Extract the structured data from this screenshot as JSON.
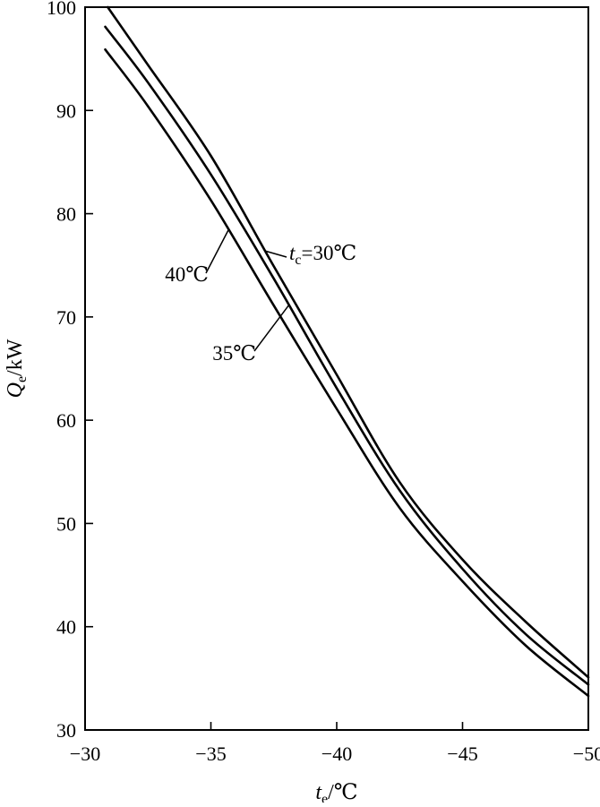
{
  "chart_data": {
    "type": "line",
    "title": "",
    "xlabel": {
      "var": "t",
      "sub": "e",
      "unit": "/℃"
    },
    "ylabel": {
      "var": "Q",
      "sub": "e",
      "unit": "/kW"
    },
    "xlim": [
      -30,
      -50
    ],
    "ylim": [
      30,
      100
    ],
    "xticks": [
      -30,
      -35,
      -40,
      -45,
      -50
    ],
    "xtick_labels": [
      "−30",
      "−35",
      "−40",
      "−45",
      "−50"
    ],
    "yticks": [
      30,
      40,
      50,
      60,
      70,
      80,
      90,
      100
    ],
    "ytick_labels": [
      "30",
      "40",
      "50",
      "60",
      "70",
      "80",
      "90",
      "100"
    ],
    "grid": false,
    "legend": "none",
    "series": [
      {
        "name": "tc=30℃",
        "label_parts": {
          "var": "t",
          "sub": "c",
          "rest": "=30℃"
        },
        "x": [
          -30.9,
          -32.5,
          -35,
          -37.5,
          -40,
          -42.5,
          -45,
          -47.5,
          -50
        ],
        "y": [
          100,
          94.4,
          85.6,
          74.9,
          64.4,
          54.0,
          46.5,
          40.5,
          35.1
        ]
      },
      {
        "name": "35℃",
        "label_parts": {
          "var": "",
          "sub": "",
          "rest": "35℃"
        },
        "x": [
          -30.8,
          -32.5,
          -35,
          -37.5,
          -40,
          -42.5,
          -45,
          -47.5,
          -50
        ],
        "y": [
          98.1,
          92.7,
          83.8,
          73.7,
          63.1,
          53.2,
          45.6,
          39.3,
          34.4
        ]
      },
      {
        "name": "40℃",
        "label_parts": {
          "var": "",
          "sub": "",
          "rest": "40℃"
        },
        "x": [
          -30.8,
          -32.5,
          -35,
          -37.5,
          -40,
          -42.5,
          -45,
          -47.5,
          -50
        ],
        "y": [
          95.9,
          90.4,
          81.3,
          71.1,
          61.1,
          51.5,
          44.4,
          38.2,
          33.3
        ]
      }
    ]
  }
}
